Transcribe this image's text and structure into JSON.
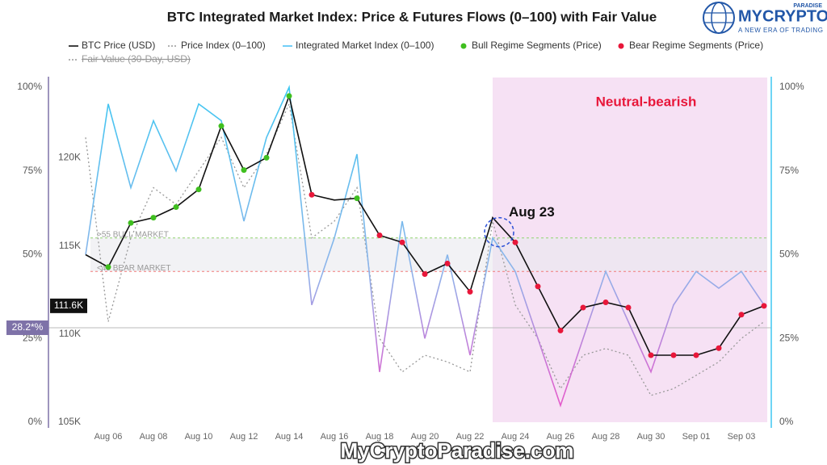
{
  "chart_data": {
    "type": "line",
    "title": "BTC Integrated Market Index: Price & Futures Flows (0–100) with Fair Value",
    "x": [
      "Aug 05",
      "Aug 06",
      "Aug 07",
      "Aug 08",
      "Aug 09",
      "Aug 10",
      "Aug 11",
      "Aug 12",
      "Aug 13",
      "Aug 14",
      "Aug 15",
      "Aug 16",
      "Aug 17",
      "Aug 18",
      "Aug 19",
      "Aug 20",
      "Aug 21",
      "Aug 22",
      "Aug 23",
      "Aug 24",
      "Aug 25",
      "Aug 26",
      "Aug 27",
      "Aug 28",
      "Aug 29",
      "Aug 30",
      "Aug 31",
      "Sep 01",
      "Sep 02",
      "Sep 03",
      "Sep 04"
    ],
    "xticks": [
      "Aug 06",
      "Aug 08",
      "Aug 10",
      "Aug 12",
      "Aug 14",
      "Aug 16",
      "Aug 18",
      "Aug 20",
      "Aug 22",
      "Aug 24",
      "Aug 26",
      "Aug 28",
      "Aug 30",
      "Sep 01",
      "Sep 03"
    ],
    "ylim": [
      105000,
      124000
    ],
    "yticks": [
      {
        "value": 105000,
        "label": "105K"
      },
      {
        "value": 110000,
        "label": "110K"
      },
      {
        "value": 115000,
        "label": "115K"
      },
      {
        "value": 120000,
        "label": "120K"
      }
    ],
    "y2lim": [
      0,
      100
    ],
    "y2ticks": [
      {
        "value": 0,
        "label": "0%"
      },
      {
        "value": 25,
        "label": "25%"
      },
      {
        "value": 50,
        "label": "50%"
      },
      {
        "value": 75,
        "label": "75%"
      },
      {
        "value": 100,
        "label": "100%"
      }
    ],
    "series": [
      {
        "name": "BTC Price (USD)",
        "color": "#111111",
        "style": "solid",
        "values": [
          114500,
          113800,
          116300,
          116600,
          117200,
          118200,
          121800,
          119300,
          120000,
          123500,
          117900,
          117600,
          117700,
          115600,
          115200,
          113400,
          114000,
          112400,
          116600,
          115200,
          112700,
          110200,
          111500,
          111800,
          111500,
          108800,
          108800,
          108800,
          109200,
          111100,
          111600
        ]
      },
      {
        "name": "Price Index (0–100)",
        "color": "#999999",
        "style": "dotted",
        "axis": "y2",
        "values": [
          85,
          30,
          55,
          70,
          65,
          75,
          85,
          70,
          80,
          95,
          55,
          60,
          70,
          25,
          15,
          20,
          18,
          15,
          60,
          35,
          25,
          10,
          20,
          22,
          20,
          8,
          10,
          14,
          18,
          25,
          30
        ]
      },
      {
        "name": "Integrated Market Index (0–100)",
        "color": "#4fc3f7",
        "style": "solid",
        "axis": "y2",
        "values": [
          50,
          95,
          70,
          90,
          75,
          95,
          90,
          60,
          85,
          100,
          35,
          55,
          80,
          15,
          60,
          25,
          50,
          20,
          55,
          45,
          25,
          5,
          25,
          45,
          30,
          15,
          35,
          45,
          40,
          45,
          35
        ]
      },
      {
        "name": "Bull Regime Segments (Price)",
        "color": "#3fbf1f",
        "style": "dots",
        "values": [
          null,
          113800,
          116300,
          116600,
          117200,
          118200,
          121800,
          119300,
          120000,
          123500,
          null,
          null,
          117700,
          null,
          null,
          null,
          null,
          null,
          null,
          null,
          null,
          null,
          null,
          null,
          null,
          null,
          null,
          null,
          null,
          null,
          null
        ]
      },
      {
        "name": "Bear Regime Segments (Price)",
        "color": "#e8173a",
        "style": "dots",
        "values": [
          null,
          null,
          null,
          null,
          null,
          null,
          null,
          null,
          null,
          null,
          117900,
          null,
          null,
          115600,
          115200,
          113400,
          114000,
          112400,
          null,
          115200,
          112700,
          110200,
          111500,
          111800,
          111500,
          108800,
          108800,
          108800,
          109200,
          111100,
          111600
        ]
      },
      {
        "name": "Fair Value (30-Day, USD)",
        "color": "#999999",
        "style": "dotted",
        "hidden": true,
        "values": [
          null,
          null,
          null,
          null,
          null,
          null,
          null,
          null,
          null,
          null,
          null,
          null,
          null,
          null,
          null,
          null,
          null,
          null,
          null,
          null,
          null,
          null,
          null,
          null,
          null,
          null,
          null,
          null,
          null,
          null,
          null
        ]
      }
    ],
    "thresholds": [
      {
        "value": 55,
        "label": ">55 BULL MARKET",
        "color": "#8fd46f"
      },
      {
        "value": 45,
        "label": "<45 BEAR MARKET",
        "color": "#f07a7a"
      }
    ],
    "region": {
      "x_start": "Aug 23",
      "label": "Neutral-bearish",
      "color": "#f6e1f4",
      "label_color": "#e8173a"
    },
    "annotation": {
      "x": "Aug 23",
      "text": "Aug 23"
    },
    "markers": [
      {
        "axis": "y",
        "value": 111600,
        "label": "111.6K",
        "color": "#111111"
      },
      {
        "axis": "y2",
        "value": 28.2,
        "label": "28.2*%",
        "color": "#7e72a8"
      }
    ]
  },
  "logo": {
    "name": "MYCRYPTO",
    "sub": "PARADISE",
    "tagline": "A NEW ERA OF TRADING"
  },
  "watermark": "MyCryptoParadise.com"
}
